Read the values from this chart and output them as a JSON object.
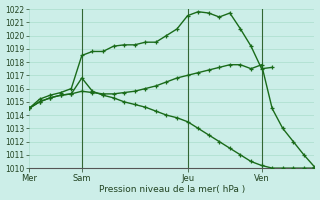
{
  "background_color": "#cceee8",
  "grid_color": "#aaddcc",
  "line_color": "#1a6b1a",
  "marker": "+",
  "ylabel_min": 1010,
  "ylabel_max": 1022,
  "xlabel_label": "Pression niveau de la mer( hPa )",
  "day_labels": [
    "Mer",
    "Sam",
    "Jeu",
    "Ven"
  ],
  "day_positions": [
    0,
    5,
    15,
    22
  ],
  "xlim": [
    0,
    27
  ],
  "series1_x": [
    0,
    1,
    2,
    3,
    4,
    5,
    6,
    7,
    8,
    9,
    10,
    11,
    12,
    13,
    14,
    15,
    16,
    17,
    18,
    19,
    20,
    21,
    22,
    23
  ],
  "series1_y": [
    1014.5,
    1015.2,
    1015.5,
    1015.7,
    1016.0,
    1018.5,
    1018.8,
    1018.8,
    1019.2,
    1019.3,
    1019.3,
    1019.5,
    1019.5,
    1020.0,
    1020.5,
    1021.5,
    1021.8,
    1021.7,
    1021.4,
    1021.7,
    1020.5,
    1019.2,
    1017.5,
    1017.6
  ],
  "series2_x": [
    0,
    1,
    2,
    3,
    4,
    5,
    6,
    7,
    8,
    9,
    10,
    11,
    12,
    13,
    14,
    15,
    16,
    17,
    18,
    19,
    20,
    21,
    22,
    23,
    24,
    25,
    26,
    27
  ],
  "series2_y": [
    1014.5,
    1015.0,
    1015.3,
    1015.5,
    1015.6,
    1015.8,
    1015.7,
    1015.6,
    1015.6,
    1015.7,
    1015.8,
    1016.0,
    1016.2,
    1016.5,
    1016.8,
    1017.0,
    1017.2,
    1017.4,
    1017.6,
    1017.8,
    1017.8,
    1017.5,
    1017.8,
    1014.5,
    1013.0,
    1012.0,
    1011.0,
    1010.1
  ],
  "series3_x": [
    0,
    1,
    2,
    3,
    4,
    5,
    6,
    7,
    8,
    9,
    10,
    11,
    12,
    13,
    14,
    15,
    16,
    17,
    18,
    19,
    20,
    21,
    22,
    23,
    24,
    25,
    26,
    27
  ],
  "series3_y": [
    1014.5,
    1015.0,
    1015.3,
    1015.5,
    1015.6,
    1016.8,
    1015.8,
    1015.5,
    1015.3,
    1015.0,
    1014.8,
    1014.6,
    1014.3,
    1014.0,
    1013.8,
    1013.5,
    1013.0,
    1012.5,
    1012.0,
    1011.5,
    1011.0,
    1010.5,
    1010.2,
    1010.0,
    1010.0,
    1010.0,
    1010.0,
    1010.0
  ]
}
